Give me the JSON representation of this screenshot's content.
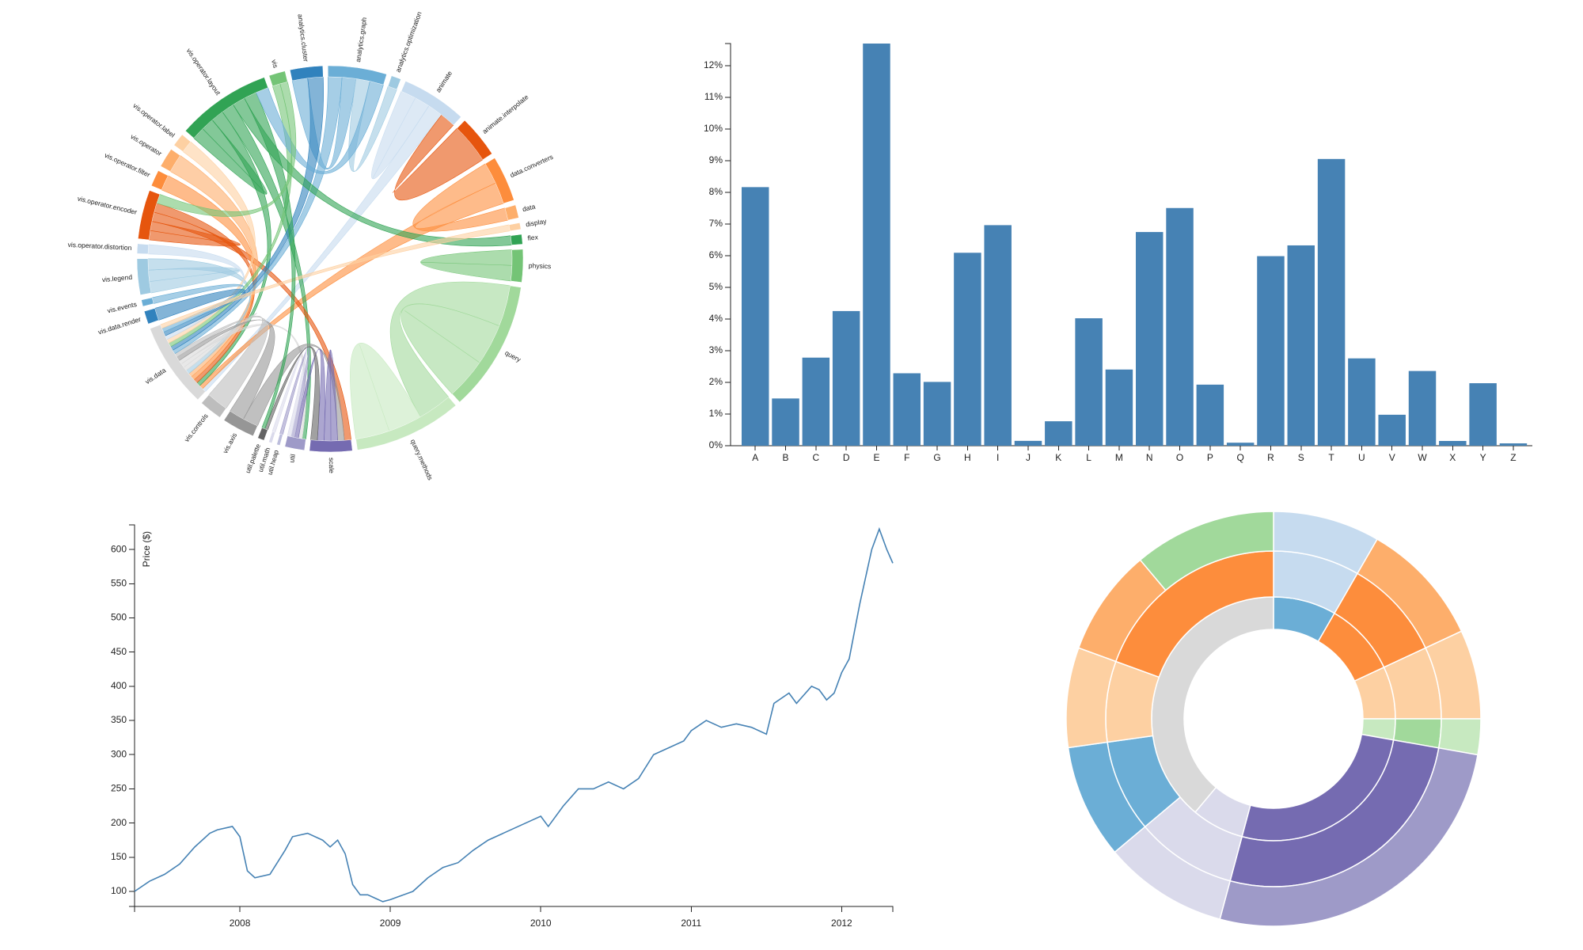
{
  "chart_data": [
    {
      "type": "chord",
      "groups": [
        {
          "label": "analytics.cluster",
          "color": "#3182bd",
          "value": 10
        },
        {
          "label": "analytics.graph",
          "color": "#6baed6",
          "value": 18
        },
        {
          "label": "analytics.optimization",
          "color": "#9ecae1",
          "value": 3
        },
        {
          "label": "animate",
          "color": "#c6dbef",
          "value": 20
        },
        {
          "label": "animate.interpolate",
          "color": "#e6550d",
          "value": 13
        },
        {
          "label": "data.converters",
          "color": "#fd8d3c",
          "value": 14
        },
        {
          "label": "data",
          "color": "#fdae6b",
          "value": 4
        },
        {
          "label": "display",
          "color": "#fdd0a2",
          "value": 2
        },
        {
          "label": "flex",
          "color": "#31a354",
          "value": 3
        },
        {
          "label": "physics",
          "color": "#74c476",
          "value": 10
        },
        {
          "label": "query",
          "color": "#a1d99b",
          "value": 40
        },
        {
          "label": "query.methods",
          "color": "#c7e9c0",
          "value": 33
        },
        {
          "label": "scale",
          "color": "#756bb1",
          "value": 13
        },
        {
          "label": "util",
          "color": "#9e9ac8",
          "value": 6
        },
        {
          "label": "util.heap",
          "color": "#bcbddc",
          "value": 1
        },
        {
          "label": "util.math",
          "color": "#dadaeb",
          "value": 1
        },
        {
          "label": "util.palette",
          "color": "#636363",
          "value": 2
        },
        {
          "label": "vis.axis",
          "color": "#969696",
          "value": 10
        },
        {
          "label": "vis.controls",
          "color": "#bdbdbd",
          "value": 7
        },
        {
          "label": "vis.data",
          "color": "#d9d9d9",
          "value": 26
        },
        {
          "label": "vis.data.render",
          "color": "#3182bd",
          "value": 4
        },
        {
          "label": "vis.events",
          "color": "#6baed6",
          "value": 2
        },
        {
          "label": "vis.legend",
          "color": "#9ecae1",
          "value": 11
        },
        {
          "label": "vis.operator.distortion",
          "color": "#c6dbef",
          "value": 3
        },
        {
          "label": "vis.operator.encoder",
          "color": "#e6550d",
          "value": 15
        },
        {
          "label": "vis.operator.filter",
          "color": "#fd8d3c",
          "value": 5
        },
        {
          "label": "vis.operator",
          "color": "#fdae6b",
          "value": 6
        },
        {
          "label": "vis.operator.label",
          "color": "#fdd0a2",
          "value": 4
        },
        {
          "label": "vis.operator.layout",
          "color": "#31a354",
          "value": 29
        },
        {
          "label": "vis",
          "color": "#74c476",
          "value": 5
        }
      ],
      "links": [
        [
          10,
          11
        ],
        [
          10,
          10
        ],
        [
          11,
          11
        ],
        [
          3,
          3
        ],
        [
          3,
          19
        ],
        [
          4,
          3
        ],
        [
          5,
          6
        ],
        [
          5,
          19
        ],
        [
          28,
          28
        ],
        [
          28,
          19
        ],
        [
          28,
          13
        ],
        [
          24,
          24
        ],
        [
          24,
          12
        ],
        [
          24,
          19
        ],
        [
          25,
          19
        ],
        [
          26,
          19
        ],
        [
          22,
          22
        ],
        [
          22,
          19
        ],
        [
          19,
          19
        ],
        [
          19,
          13
        ],
        [
          17,
          12
        ],
        [
          17,
          19
        ],
        [
          18,
          19
        ],
        [
          12,
          12
        ],
        [
          12,
          13
        ],
        [
          1,
          19
        ],
        [
          1,
          0
        ],
        [
          0,
          19
        ],
        [
          2,
          1
        ],
        [
          29,
          19
        ],
        [
          9,
          9
        ],
        [
          8,
          28
        ],
        [
          27,
          19
        ],
        [
          23,
          19
        ],
        [
          20,
          19
        ],
        [
          21,
          19
        ],
        [
          13,
          14
        ],
        [
          15,
          13
        ],
        [
          16,
          12
        ],
        [
          7,
          19
        ],
        [
          28,
          16
        ],
        [
          1,
          28
        ],
        [
          29,
          24
        ]
      ]
    },
    {
      "type": "bar",
      "categories": [
        "A",
        "B",
        "C",
        "D",
        "E",
        "F",
        "G",
        "H",
        "I",
        "J",
        "K",
        "L",
        "M",
        "N",
        "O",
        "P",
        "Q",
        "R",
        "S",
        "T",
        "U",
        "V",
        "W",
        "X",
        "Y",
        "Z"
      ],
      "values": [
        8.167,
        1.492,
        2.782,
        4.253,
        12.702,
        2.288,
        2.015,
        6.094,
        6.966,
        0.153,
        0.772,
        4.025,
        2.406,
        6.749,
        7.507,
        1.929,
        0.095,
        5.987,
        6.327,
        9.056,
        2.758,
        0.978,
        2.36,
        0.15,
        1.974,
        0.074
      ],
      "color": "#4682b4",
      "ylim": [
        0,
        12.702
      ],
      "yticks": [
        {
          "value": 0,
          "label": "0%"
        },
        {
          "value": 1,
          "label": "1%"
        },
        {
          "value": 2,
          "label": "2%"
        },
        {
          "value": 3,
          "label": "3%"
        },
        {
          "value": 4,
          "label": "4%"
        },
        {
          "value": 5,
          "label": "5%"
        },
        {
          "value": 6,
          "label": "6%"
        },
        {
          "value": 7,
          "label": "7%"
        },
        {
          "value": 8,
          "label": "8%"
        },
        {
          "value": 9,
          "label": "9%"
        },
        {
          "value": 10,
          "label": "10%"
        },
        {
          "value": 11,
          "label": "11%"
        },
        {
          "value": 12,
          "label": "12%"
        }
      ]
    },
    {
      "type": "line",
      "y_label": "Price ($)",
      "color": "#4682b4",
      "x": [
        2007.3,
        2007.4,
        2007.5,
        2007.6,
        2007.7,
        2007.8,
        2007.85,
        2007.95,
        2008.0,
        2008.05,
        2008.1,
        2008.2,
        2008.3,
        2008.35,
        2008.45,
        2008.55,
        2008.6,
        2008.65,
        2008.7,
        2008.75,
        2008.8,
        2008.85,
        2008.9,
        2008.95,
        2009.0,
        2009.05,
        2009.15,
        2009.25,
        2009.35,
        2009.45,
        2009.55,
        2009.65,
        2009.75,
        2009.85,
        2009.95,
        2010.0,
        2010.05,
        2010.15,
        2010.25,
        2010.35,
        2010.45,
        2010.55,
        2010.65,
        2010.75,
        2010.85,
        2010.95,
        2011.0,
        2011.1,
        2011.2,
        2011.3,
        2011.4,
        2011.5,
        2011.55,
        2011.65,
        2011.7,
        2011.8,
        2011.85,
        2011.9,
        2011.95,
        2012.0,
        2012.05,
        2012.12,
        2012.2,
        2012.25,
        2012.3,
        2012.34
      ],
      "values": [
        100,
        115,
        125,
        140,
        165,
        185,
        190,
        195,
        180,
        130,
        120,
        125,
        160,
        180,
        185,
        175,
        165,
        175,
        155,
        110,
        95,
        95,
        90,
        85,
        88,
        92,
        100,
        120,
        135,
        142,
        160,
        175,
        185,
        195,
        205,
        210,
        195,
        225,
        250,
        250,
        260,
        250,
        265,
        300,
        310,
        320,
        335,
        350,
        340,
        345,
        340,
        330,
        375,
        390,
        375,
        400,
        395,
        380,
        390,
        420,
        440,
        520,
        600,
        630,
        600,
        580
      ],
      "xlim": [
        2007.3,
        2012.34
      ],
      "xticks": [
        2008,
        2009,
        2010,
        2011,
        2012
      ],
      "ylim": [
        78,
        636
      ],
      "yticks": [
        100,
        150,
        200,
        250,
        300,
        350,
        400,
        450,
        500,
        550,
        600
      ]
    },
    {
      "type": "sunburst",
      "rings": [
        {
          "values": [
            30,
            35,
            25,
            10,
            95,
            25,
            140
          ],
          "colors": [
            "#6baed6",
            "#fd8d3c",
            "#fdd0a2",
            "#c7e9c0",
            "#756bb1",
            "#dadaeb",
            "#d9d9d9"
          ]
        },
        {
          "values": [
            30,
            35,
            25,
            10,
            95,
            35,
            32,
            28,
            70
          ],
          "colors": [
            "#c6dbef",
            "#fd8d3c",
            "#fdd0a2",
            "#a1d99b",
            "#756bb1",
            "#dadaeb",
            "#6baed6",
            "#fdd0a2",
            "#fd8d3c"
          ]
        },
        {
          "values": [
            30,
            35,
            25,
            10,
            95,
            35,
            32,
            28,
            30,
            40
          ],
          "colors": [
            "#c6dbef",
            "#fdae6b",
            "#fdd0a2",
            "#c7e9c0",
            "#9e9ac8",
            "#dadaeb",
            "#6baed6",
            "#fdd0a2",
            "#fdae6b",
            "#a1d99b"
          ]
        }
      ]
    }
  ]
}
